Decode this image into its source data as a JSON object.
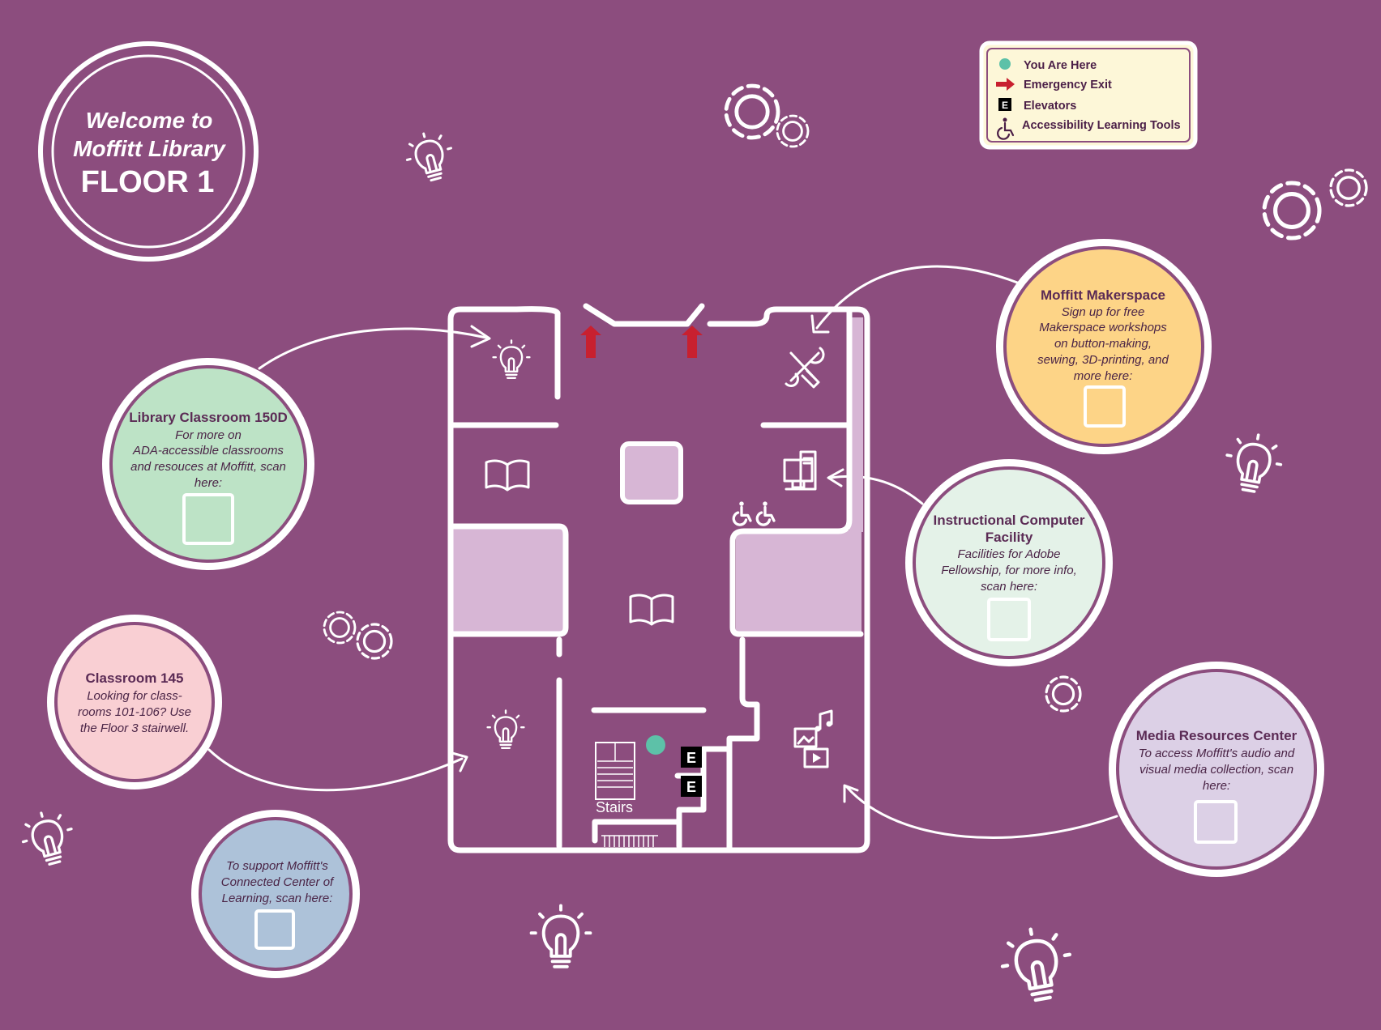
{
  "colors": {
    "background": "#8c4d7e",
    "room_fill": "#d7b6d5",
    "you_are_here": "#5dc1a8",
    "exit": "#c8202f",
    "legend_bg": "#fdf7d8",
    "green": "#bde3c6",
    "pink": "#f9cfd3",
    "blue": "#adc2d9",
    "orange": "#fdd487",
    "mint": "#e4f2e8",
    "lavender": "#dcd0e6"
  },
  "welcome": {
    "line1": "Welcome to",
    "line2": "Moffitt Library",
    "line3": "FLOOR 1"
  },
  "legend": {
    "you_are_here": "You Are Here",
    "emergency_exit": "Emergency Exit",
    "elevators": "Elevators",
    "accessibility": "Accessibility Learning Tools",
    "elevator_glyph": "E"
  },
  "map": {
    "stairs_label": "Stairs",
    "elevator_glyph": "E"
  },
  "callouts": {
    "classroom_150d": {
      "title": "Library Classroom 150D",
      "body": [
        "For more on",
        "ADA-accessible classrooms",
        "and resouces at Moffitt, scan",
        "here:"
      ]
    },
    "classroom_145": {
      "title": "Classroom 145",
      "body": [
        "Looking for class-",
        "rooms 101-106? Use",
        "the Floor 3 stairwell."
      ]
    },
    "connected_center": {
      "title": "",
      "body": [
        "To support Moffitt's",
        "Connected Center of",
        "Learning, scan here:"
      ]
    },
    "makerspace": {
      "title": "Moffitt Makerspace",
      "body": [
        "Sign up for free",
        "Makerspace workshops",
        "on button-making,",
        "sewing, 3D-printing, and",
        "more here:"
      ]
    },
    "computer_facility": {
      "title": [
        "Instructional Computer",
        "Facility"
      ],
      "body": [
        "Facilities for Adobe",
        "Fellowship, for more info,",
        "scan here:"
      ]
    },
    "media_center": {
      "title": "Media Resources Center",
      "body": [
        "To access Moffitt's audio and",
        "visual media collection, scan",
        "here:"
      ]
    }
  },
  "icons": [
    "lightbulb-icon",
    "gear-icon",
    "book-icon",
    "tools-icon",
    "computer-icon",
    "wheelchair-icon",
    "media-icon",
    "exit-arrow-icon",
    "elevator-icon",
    "qr-placeholder"
  ]
}
